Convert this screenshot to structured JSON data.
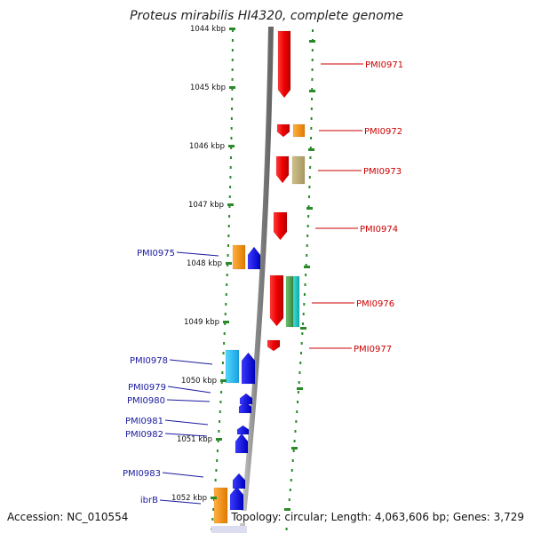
{
  "title": "Proteus mirabilis HI4320, complete genome",
  "footer": {
    "accession": "Accession: NC_010554",
    "summary": "Topology: circular; Length: 4,063,606 bp; Genes: 3,729"
  },
  "colors": {
    "axis": "#888888",
    "tick": "#2a8a2a",
    "forward_label": "#cc0000",
    "reverse_label": "#1a1aa0"
  },
  "scale_labels": [
    {
      "name": "tick-1044",
      "text": "1044 kbp"
    },
    {
      "name": "tick-1045",
      "text": "1045 kbp"
    },
    {
      "name": "tick-1046",
      "text": "1046 kbp"
    },
    {
      "name": "tick-1047",
      "text": "1047 kbp"
    },
    {
      "name": "tick-1048",
      "text": "1048 kbp"
    },
    {
      "name": "tick-1049",
      "text": "1049 kbp"
    },
    {
      "name": "tick-1050",
      "text": "1050 kbp"
    },
    {
      "name": "tick-1051",
      "text": "1051 kbp"
    },
    {
      "name": "tick-1052",
      "text": "1052 kbp"
    }
  ],
  "forward_genes": [
    "PMI0971",
    "PMI0972",
    "PMI0973",
    "PMI0974",
    "PMI0976",
    "PMI0977"
  ],
  "reverse_genes": [
    "PMI0975",
    "PMI0978",
    "PMI0979",
    "PMI0980",
    "PMI0981",
    "PMI0982",
    "PMI0983",
    "ibrB"
  ]
}
